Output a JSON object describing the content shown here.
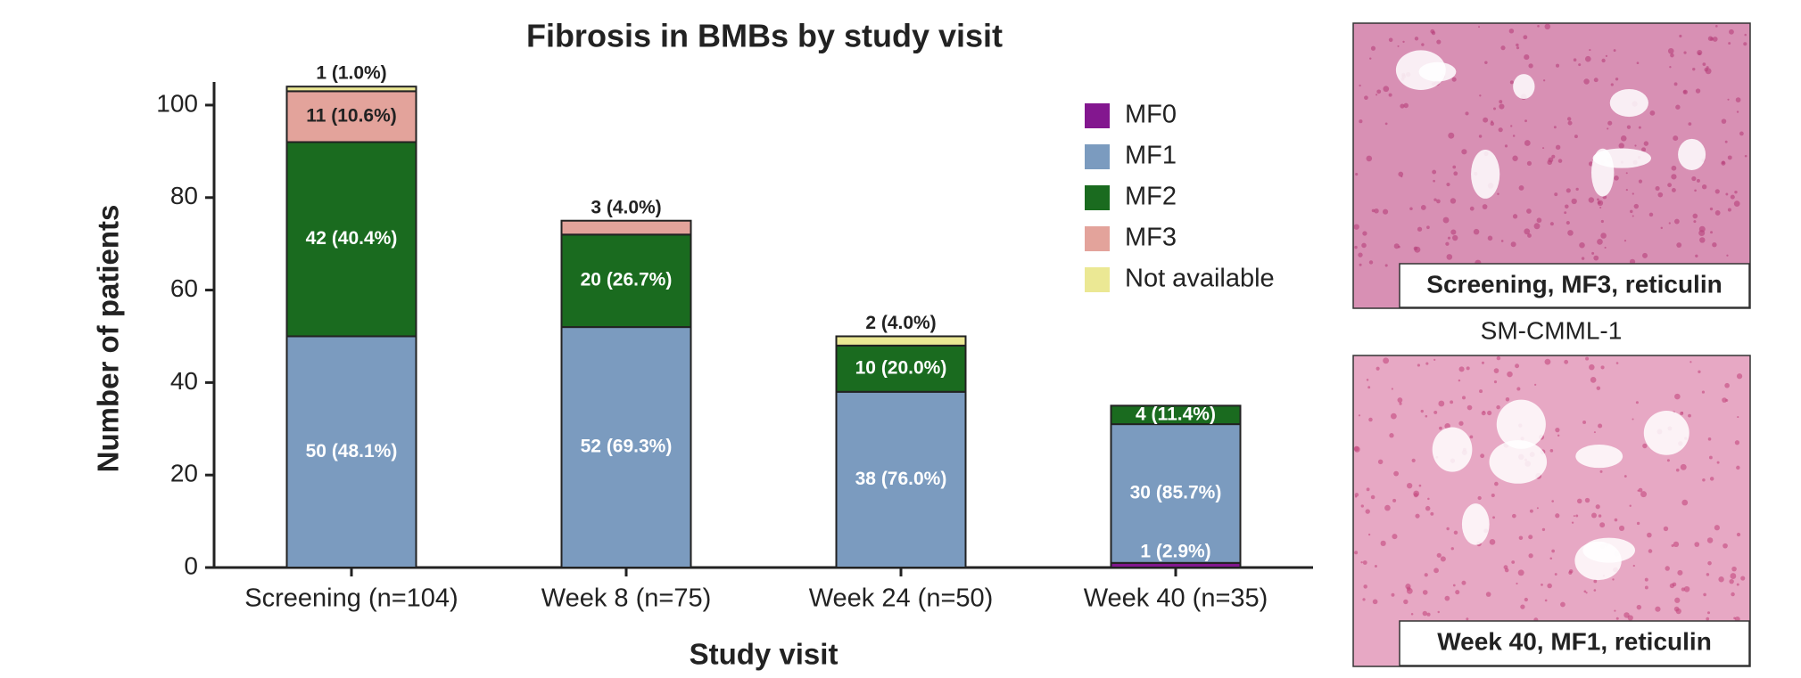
{
  "chart_data": {
    "type": "stacked-bar",
    "title": "Fibrosis in BMBs by study visit",
    "x_label": "Study visit",
    "y_label": "Number of patients",
    "categories": [
      "Screening (n=104)",
      "Week 8 (n=75)",
      "Week 24 (n=50)",
      "Week 40 (n=35)"
    ],
    "series": [
      {
        "name": "MF0",
        "color": "#83178f",
        "values": [
          null,
          null,
          null,
          1
        ],
        "value_labels": [
          null,
          null,
          null,
          "1 (2.9%)"
        ]
      },
      {
        "name": "MF1",
        "color": "#7b9bbf",
        "values": [
          50,
          52,
          38,
          30
        ],
        "value_labels": [
          "50 (48.1%)",
          "52 (69.3%)",
          "38 (76.0%)",
          "30 (85.7%)"
        ]
      },
      {
        "name": "MF2",
        "color": "#1a6b1f",
        "values": [
          42,
          20,
          10,
          4
        ],
        "value_labels": [
          "42 (40.4%)",
          "20 (26.7%)",
          "10 (20.0%)",
          "4 (11.4%)"
        ]
      },
      {
        "name": "MF3",
        "color": "#e3a39b",
        "values": [
          11,
          3,
          null,
          null
        ],
        "value_labels": [
          "11 (10.6%)",
          "3 (4.0%)",
          null,
          null
        ]
      },
      {
        "name": "Not available",
        "color": "#ebe894",
        "values": [
          1,
          null,
          2,
          null
        ],
        "value_labels": [
          "1 (1.0%)",
          null,
          "2 (4.0%)",
          null
        ]
      }
    ],
    "ylim": [
      0,
      105
    ],
    "yticks": [
      0,
      20,
      40,
      60,
      80,
      100
    ]
  },
  "panels": [
    {
      "caption": "Screening, MF3, reticulin"
    },
    {
      "label": "SM-CMML-1",
      "caption": "Week 40, MF1, reticulin"
    }
  ]
}
